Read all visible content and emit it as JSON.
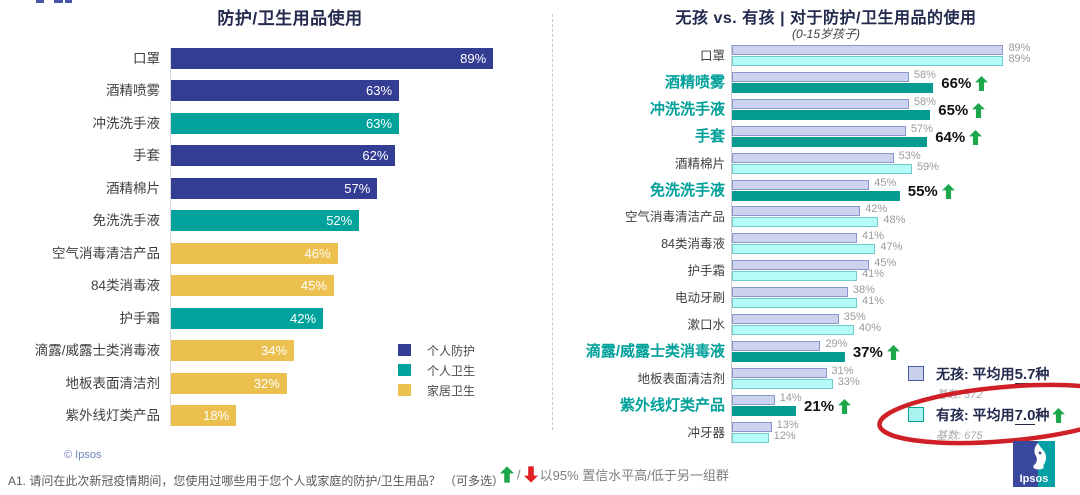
{
  "left_panel": {
    "title": "防护/卫生用品使用",
    "copyright": "© Ipsos",
    "legend": [
      {
        "label": "个人防护",
        "color": "#333d94"
      },
      {
        "label": "个人卫生",
        "color": "#00a39b"
      },
      {
        "label": "家居卫生",
        "color": "#ecc04f"
      }
    ]
  },
  "right_panel": {
    "title": "无孩 vs. 有孩 | 对于防护/卫生用品的使用",
    "subtitle": "(0-15岁孩子)",
    "legend": [
      {
        "label_prefix": "无孩: 平均用",
        "avg_value": "5.7",
        "label_suffix": "种",
        "base": "基数: 372",
        "significant": false
      },
      {
        "label_prefix": "有孩: 平均用",
        "avg_value": "7.0",
        "label_suffix": "种",
        "base": "基数: 675",
        "significant": true
      }
    ]
  },
  "footer": {
    "question_note": "A1. 请问在此次新冠疫情期间，您使用过哪些用于您个人或家庭的防护/卫生用品？ （可多选）",
    "separator": "/",
    "significance_note": "以95% 置信水平高/低于另一组群",
    "logo_text": "Ipsos"
  },
  "colors": {
    "personal_protection": "#333d94",
    "personal_hygiene": "#00a39b",
    "household_hygiene": "#ecc04f",
    "no_child_fill": "#cdd3ee",
    "no_child_border": "#8a97cc",
    "with_child_fill": "#b5fbf8",
    "with_child_border": "#6fcbcd",
    "significant_fill": "#049b93",
    "up_arrow_green": "#1da64a",
    "down_arrow_red": "#e31e24",
    "annotation_red": "#ce2026"
  },
  "chart_data": [
    {
      "type": "bar",
      "orientation": "horizontal",
      "title": "防护/卫生用品使用",
      "unit": "%",
      "xlim": [
        0,
        100
      ],
      "grid": false,
      "legend_position": "right-middle",
      "categories": [
        "口罩",
        "酒精喷雾",
        "冲洗洗手液",
        "手套",
        "酒精棉片",
        "免洗洗手液",
        "空气消毒清洁产品",
        "84类消毒液",
        "护手霜",
        "滴露/威露士类消毒液",
        "地板表面清洁剂",
        "紫外线灯类产品"
      ],
      "values": [
        89,
        63,
        63,
        62,
        57,
        52,
        46,
        45,
        42,
        34,
        32,
        18
      ],
      "group_index": [
        0,
        0,
        1,
        0,
        0,
        1,
        2,
        2,
        1,
        2,
        2,
        2
      ],
      "groups": [
        "个人防护",
        "个人卫生",
        "家居卫生"
      ]
    },
    {
      "type": "bar",
      "orientation": "horizontal",
      "title": "无孩 vs. 有孩 | 对于防护/卫生用品的使用",
      "subtitle": "(0-15岁孩子)",
      "unit": "%",
      "xlim": [
        0,
        100
      ],
      "grid": false,
      "legend_position": "right-bottom",
      "categories": [
        "口罩",
        "酒精喷雾",
        "冲洗洗手液",
        "手套",
        "酒精棉片",
        "免洗洗手液",
        "空气消毒清洁产品",
        "84类消毒液",
        "护手霜",
        "电动牙刷",
        "漱口水",
        "滴露/威露士类消毒液",
        "地板表面清洁剂",
        "紫外线灯类产品",
        "冲牙器"
      ],
      "series": [
        {
          "name": "无孩",
          "avg_products": "5.7",
          "base": 372,
          "values": [
            89,
            58,
            58,
            57,
            53,
            45,
            42,
            41,
            45,
            38,
            35,
            29,
            31,
            14,
            13
          ]
        },
        {
          "name": "有孩",
          "avg_products": "7.0",
          "base": 675,
          "values": [
            89,
            66,
            65,
            64,
            59,
            55,
            48,
            47,
            41,
            41,
            40,
            37,
            33,
            21,
            12
          ]
        }
      ],
      "significant_rows": [
        false,
        true,
        true,
        true,
        false,
        true,
        false,
        false,
        false,
        false,
        false,
        true,
        false,
        true,
        false
      ]
    }
  ]
}
